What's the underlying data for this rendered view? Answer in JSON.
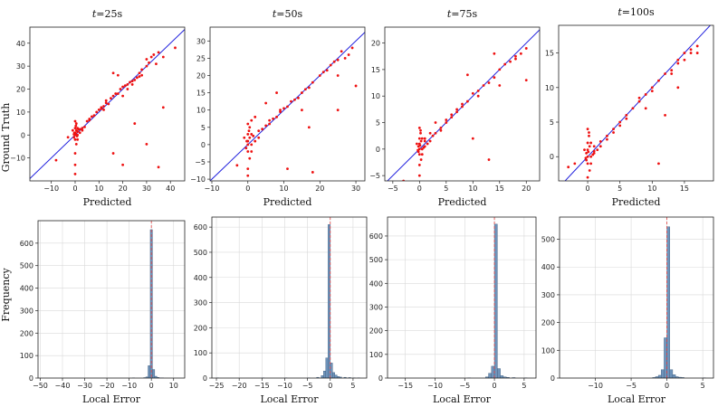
{
  "figure": {
    "scatter_xlabel": "Predicted",
    "scatter_ylabel": "Ground Truth",
    "hist_xlabel": "Local Error",
    "hist_ylabel": "Frequency"
  },
  "chart_data": [
    {
      "type": "scatter",
      "title_prefix": "t",
      "title": "=25s",
      "xlabel": "Predicted",
      "ylabel": "Ground Truth",
      "xlim": [
        -19,
        46
      ],
      "ylim": [
        -20,
        47
      ],
      "xticks": [
        -10,
        0,
        10,
        20,
        30,
        40
      ],
      "yticks": [
        -10,
        0,
        10,
        20,
        30,
        40
      ],
      "reference_line": "y = x",
      "points": [
        [
          0,
          0
        ],
        [
          0,
          1
        ],
        [
          0.5,
          2
        ],
        [
          1,
          3
        ],
        [
          -0.5,
          -1
        ],
        [
          0,
          -2
        ],
        [
          1,
          0
        ],
        [
          0.3,
          4
        ],
        [
          0,
          6
        ],
        [
          -1,
          2
        ],
        [
          0.5,
          -4
        ],
        [
          0,
          -8
        ],
        [
          0,
          -13
        ],
        [
          0,
          -17
        ],
        [
          1,
          -2
        ],
        [
          2,
          1
        ],
        [
          0.5,
          5
        ],
        [
          0,
          3
        ],
        [
          -0.3,
          1
        ],
        [
          1.5,
          2.5
        ],
        [
          3,
          2
        ],
        [
          5,
          6
        ],
        [
          7,
          8
        ],
        [
          8,
          8.5
        ],
        [
          9,
          10
        ],
        [
          10,
          11
        ],
        [
          11,
          12
        ],
        [
          12,
          11
        ],
        [
          13,
          15
        ],
        [
          14,
          13.5
        ],
        [
          15,
          16
        ],
        [
          16,
          17
        ],
        [
          17,
          18
        ],
        [
          18,
          18
        ],
        [
          19,
          20
        ],
        [
          20,
          21
        ],
        [
          21,
          21.5
        ],
        [
          22,
          22
        ],
        [
          23,
          23
        ],
        [
          24,
          23.5
        ],
        [
          25,
          24
        ],
        [
          26,
          25
        ],
        [
          27,
          25.5
        ],
        [
          28,
          26
        ],
        [
          24,
          22
        ],
        [
          22,
          20
        ],
        [
          20,
          17
        ],
        [
          18,
          26
        ],
        [
          16,
          27
        ],
        [
          25,
          5
        ],
        [
          16,
          -8
        ],
        [
          20,
          -13
        ],
        [
          35,
          -14
        ],
        [
          37,
          12
        ],
        [
          30,
          -4
        ],
        [
          -8,
          -11
        ],
        [
          4,
          3.5
        ],
        [
          6,
          7
        ],
        [
          3,
          3
        ],
        [
          2,
          2.5
        ],
        [
          -3,
          -1
        ],
        [
          30,
          33
        ],
        [
          32,
          34
        ],
        [
          33,
          35
        ],
        [
          35,
          36
        ],
        [
          37,
          34
        ],
        [
          42,
          38
        ],
        [
          34,
          31
        ],
        [
          30,
          30
        ],
        [
          31,
          31.5
        ],
        [
          27,
          27
        ],
        [
          28,
          28.5
        ],
        [
          13,
          14
        ],
        [
          12,
          12.5
        ],
        [
          11,
          11.5
        ],
        [
          6,
          6.5
        ],
        [
          1,
          1.5
        ],
        [
          0.2,
          0.5
        ],
        [
          -0.5,
          0.3
        ],
        [
          0.8,
          -0.5
        ]
      ]
    },
    {
      "type": "scatter",
      "title_prefix": "t",
      "title": "=50s",
      "xlabel": "Predicted",
      "ylabel": "",
      "xlim": [
        -10.5,
        32.5
      ],
      "ylim": [
        -10.5,
        34
      ],
      "xticks": [
        -10,
        0,
        10,
        20,
        30
      ],
      "yticks": [
        -10,
        -5,
        0,
        5,
        10,
        15,
        20,
        25,
        30
      ],
      "reference_line": "y = x",
      "points": [
        [
          0,
          0
        ],
        [
          0,
          1
        ],
        [
          0.5,
          2
        ],
        [
          1,
          3
        ],
        [
          -0.5,
          -1
        ],
        [
          0,
          -2
        ],
        [
          1,
          0
        ],
        [
          0.3,
          4
        ],
        [
          0,
          6
        ],
        [
          -1,
          2
        ],
        [
          0.5,
          -4
        ],
        [
          0,
          -7
        ],
        [
          0,
          -9
        ],
        [
          1,
          -2
        ],
        [
          2,
          1
        ],
        [
          0.5,
          5
        ],
        [
          0,
          3
        ],
        [
          -0.3,
          1
        ],
        [
          1.5,
          2.5
        ],
        [
          3,
          2
        ],
        [
          4,
          4.5
        ],
        [
          5,
          5.5
        ],
        [
          6,
          6
        ],
        [
          7,
          7.5
        ],
        [
          8,
          8
        ],
        [
          9,
          9.5
        ],
        [
          10,
          10.5
        ],
        [
          11,
          11
        ],
        [
          12,
          12.5
        ],
        [
          13,
          13
        ],
        [
          14,
          13.5
        ],
        [
          15,
          15
        ],
        [
          16,
          16
        ],
        [
          17,
          16.5
        ],
        [
          18,
          18
        ],
        [
          20,
          20
        ],
        [
          21,
          21
        ],
        [
          22,
          21.5
        ],
        [
          23,
          23
        ],
        [
          24,
          24
        ],
        [
          25,
          24.5
        ],
        [
          25,
          20
        ],
        [
          26,
          27
        ],
        [
          28,
          26
        ],
        [
          30,
          17
        ],
        [
          8,
          15
        ],
        [
          5,
          12
        ],
        [
          15,
          10
        ],
        [
          17,
          5
        ],
        [
          18,
          -8
        ],
        [
          11,
          -7
        ],
        [
          -3,
          -6
        ],
        [
          25,
          10
        ],
        [
          27,
          25
        ],
        [
          29,
          28
        ],
        [
          2,
          8
        ],
        [
          1,
          7
        ],
        [
          3,
          4
        ],
        [
          6,
          7
        ],
        [
          9,
          10
        ]
      ]
    },
    {
      "type": "scatter",
      "title_prefix": "t",
      "title": "=75s",
      "xlabel": "Predicted",
      "ylabel": "",
      "xlim": [
        -6.5,
        22.5
      ],
      "ylim": [
        -6,
        23
      ],
      "xticks": [
        -5,
        0,
        5,
        10,
        15,
        20
      ],
      "yticks": [
        -5,
        0,
        5,
        10,
        15,
        20
      ],
      "reference_line": "y = x",
      "points": [
        [
          0,
          0
        ],
        [
          0,
          1
        ],
        [
          0.3,
          1.5
        ],
        [
          0.5,
          2
        ],
        [
          -0.2,
          -0.5
        ],
        [
          0,
          -1
        ],
        [
          0.5,
          0
        ],
        [
          0.2,
          3
        ],
        [
          0,
          4
        ],
        [
          -0.5,
          1
        ],
        [
          0.3,
          -2
        ],
        [
          0,
          -3
        ],
        [
          0,
          -5
        ],
        [
          0.5,
          -1
        ],
        [
          1,
          0.5
        ],
        [
          0.2,
          3.5
        ],
        [
          0,
          2
        ],
        [
          -0.2,
          0.5
        ],
        [
          1,
          1.5
        ],
        [
          2,
          1.5
        ],
        [
          3,
          3
        ],
        [
          4,
          4
        ],
        [
          5,
          5
        ],
        [
          6,
          6
        ],
        [
          7,
          7
        ],
        [
          8,
          8.5
        ],
        [
          9,
          9
        ],
        [
          10,
          10.5
        ],
        [
          11,
          11
        ],
        [
          12,
          12
        ],
        [
          13,
          12.5
        ],
        [
          14,
          13.5
        ],
        [
          15,
          15
        ],
        [
          16,
          16
        ],
        [
          17,
          16.5
        ],
        [
          18,
          17
        ],
        [
          19,
          18
        ],
        [
          20,
          19
        ],
        [
          20,
          13
        ],
        [
          15,
          12
        ],
        [
          14,
          18
        ],
        [
          18,
          17.5
        ],
        [
          9,
          14
        ],
        [
          10,
          2
        ],
        [
          13,
          -2
        ],
        [
          -3,
          -6
        ],
        [
          3,
          5
        ],
        [
          2,
          3
        ],
        [
          1,
          2
        ],
        [
          5,
          5.5
        ],
        [
          6,
          6.5
        ],
        [
          7,
          7.5
        ],
        [
          8,
          8
        ],
        [
          0.8,
          0.3
        ],
        [
          0.1,
          0.7
        ],
        [
          -0.3,
          -0.2
        ],
        [
          1.5,
          1
        ],
        [
          2.5,
          2.5
        ],
        [
          4,
          3.5
        ],
        [
          11,
          10
        ]
      ]
    },
    {
      "type": "scatter",
      "title_prefix": "t",
      "title": "=100s",
      "xlabel": "Predicted",
      "ylabel": "",
      "xlim": [
        -4.5,
        19.5
      ],
      "ylim": [
        -3.5,
        19
      ],
      "xticks": [
        0,
        5,
        10,
        15
      ],
      "yticks": [
        0,
        5,
        10,
        15
      ],
      "reference_line": "y = x",
      "points": [
        [
          0,
          0
        ],
        [
          0,
          1
        ],
        [
          0.3,
          1.5
        ],
        [
          0.5,
          2
        ],
        [
          -0.2,
          -0.5
        ],
        [
          0,
          -1
        ],
        [
          0.5,
          0
        ],
        [
          0.2,
          3
        ],
        [
          0,
          4
        ],
        [
          -0.5,
          1
        ],
        [
          0.3,
          -2
        ],
        [
          0,
          -3
        ],
        [
          0.5,
          -1
        ],
        [
          1,
          0.5
        ],
        [
          0.2,
          3.5
        ],
        [
          0,
          2
        ],
        [
          -0.2,
          0.5
        ],
        [
          1,
          1.5
        ],
        [
          2,
          1.5
        ],
        [
          3,
          3
        ],
        [
          4,
          4
        ],
        [
          5,
          5
        ],
        [
          6,
          6
        ],
        [
          7,
          7
        ],
        [
          8,
          8
        ],
        [
          9,
          9
        ],
        [
          10,
          10
        ],
        [
          11,
          11
        ],
        [
          12,
          12
        ],
        [
          13,
          12.5
        ],
        [
          14,
          13.5
        ],
        [
          15,
          15
        ],
        [
          16,
          15.5
        ],
        [
          17,
          16
        ],
        [
          13,
          12
        ],
        [
          14,
          10
        ],
        [
          12,
          6
        ],
        [
          11,
          -1
        ],
        [
          8,
          8.5
        ],
        [
          5,
          4.5
        ],
        [
          4,
          3.5
        ],
        [
          6,
          5.5
        ],
        [
          3,
          2.5
        ],
        [
          2,
          2.2
        ],
        [
          1,
          0.8
        ],
        [
          0.8,
          0.3
        ],
        [
          0.1,
          0.7
        ],
        [
          -0.3,
          -0.2
        ],
        [
          1.5,
          1
        ],
        [
          -2,
          -1
        ],
        [
          -3,
          -1.5
        ],
        [
          17,
          15
        ],
        [
          16,
          15
        ],
        [
          9,
          7
        ],
        [
          10,
          9.5
        ],
        [
          15,
          14
        ],
        [
          14,
          14
        ]
      ]
    },
    {
      "type": "histogram",
      "title": "",
      "xlabel": "Local Error",
      "ylabel": "Frequency",
      "xlim": [
        -51,
        15
      ],
      "ylim": [
        0,
        700
      ],
      "xticks": [
        -50,
        -40,
        -30,
        -20,
        -10,
        0,
        10
      ],
      "yticks": [
        0,
        100,
        200,
        300,
        400,
        500,
        600
      ],
      "bins": [
        [
          -8.5,
          -7.5,
          1
        ],
        [
          -3.5,
          -2.5,
          2
        ],
        [
          -2.5,
          -1.5,
          5
        ],
        [
          -1.5,
          -0.5,
          55
        ],
        [
          -0.5,
          0.5,
          660
        ],
        [
          0.5,
          1.5,
          38
        ],
        [
          1.5,
          2.5,
          8
        ],
        [
          2.5,
          3.5,
          3
        ],
        [
          3.5,
          4.5,
          1
        ],
        [
          4.5,
          5.5,
          1
        ]
      ],
      "reference_x": 0
    },
    {
      "type": "histogram",
      "title": "",
      "xlabel": "Local Error",
      "ylabel": "",
      "xlim": [
        -26,
        8
      ],
      "ylim": [
        0,
        640
      ],
      "xticks": [
        -25,
        -20,
        -15,
        -10,
        -5,
        0,
        5
      ],
      "yticks": [
        0,
        100,
        200,
        300,
        400,
        500,
        600
      ],
      "bins": [
        [
          -25,
          -24.5,
          1
        ],
        [
          -15,
          -14.5,
          1
        ],
        [
          -10,
          -9.5,
          1
        ],
        [
          -5,
          -4.5,
          1
        ],
        [
          -3,
          -2.5,
          3
        ],
        [
          -2,
          -1.5,
          10
        ],
        [
          -1.5,
          -1,
          28
        ],
        [
          -1,
          -0.5,
          80
        ],
        [
          -0.5,
          0,
          610
        ],
        [
          0,
          0.5,
          60
        ],
        [
          0.5,
          1,
          22
        ],
        [
          1,
          1.5,
          12
        ],
        [
          1.5,
          2,
          6
        ],
        [
          2,
          2.5,
          4
        ],
        [
          3,
          3.5,
          3
        ],
        [
          4,
          4.5,
          2
        ],
        [
          5,
          5.5,
          1
        ],
        [
          6,
          6.5,
          1
        ]
      ],
      "reference_x": 0
    },
    {
      "type": "histogram",
      "title": "",
      "xlabel": "Local Error",
      "ylabel": "",
      "xlim": [
        -18,
        7
      ],
      "ylim": [
        0,
        680
      ],
      "xticks": [
        -15,
        -10,
        -5,
        0,
        5
      ],
      "yticks": [
        0,
        100,
        200,
        300,
        400,
        500,
        600
      ],
      "bins": [
        [
          -4.5,
          -4,
          1
        ],
        [
          -1.5,
          -1,
          5
        ],
        [
          -1,
          -0.5,
          20
        ],
        [
          -0.5,
          0,
          50
        ],
        [
          0,
          0.5,
          650
        ],
        [
          0.5,
          1,
          40
        ],
        [
          1,
          1.5,
          10
        ],
        [
          1.5,
          2,
          5
        ],
        [
          2,
          2.5,
          3
        ],
        [
          3,
          3.5,
          2
        ],
        [
          5,
          5.5,
          1
        ]
      ],
      "reference_x": 0
    },
    {
      "type": "histogram",
      "title": "",
      "xlabel": "Local Error",
      "ylabel": "",
      "xlim": [
        -15,
        6.5
      ],
      "ylim": [
        0,
        580
      ],
      "xticks": [
        -10,
        -5,
        0,
        5
      ],
      "yticks": [
        0,
        100,
        200,
        300,
        400,
        500
      ],
      "bins": [
        [
          -2,
          -1.6,
          2
        ],
        [
          -1.6,
          -1.2,
          5
        ],
        [
          -1.2,
          -0.8,
          10
        ],
        [
          -0.8,
          -0.4,
          30
        ],
        [
          -0.4,
          0,
          145
        ],
        [
          0,
          0.4,
          545
        ],
        [
          0.4,
          0.8,
          30
        ],
        [
          0.8,
          1.2,
          12
        ],
        [
          1.2,
          1.6,
          5
        ],
        [
          1.6,
          2,
          3
        ],
        [
          2,
          2.4,
          2
        ],
        [
          5,
          5.4,
          1
        ]
      ],
      "reference_x": 0
    }
  ]
}
